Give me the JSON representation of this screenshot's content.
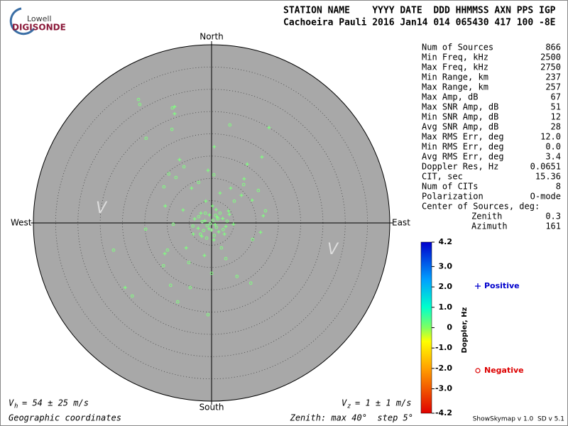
{
  "header": {
    "logo_top": "Lowell",
    "logo_bottom": "DIGISONDE",
    "line1": "STATION NAME    YYYY DATE  DDD HHMMSS AXN PPS IGP",
    "line2": "Cachoeira Pauli 2016 Jan14 014 065430 417 100 -8E"
  },
  "stats": [
    {
      "label": "Num of Sources",
      "value": "866"
    },
    {
      "label": "Min Freq, kHz",
      "value": "2500"
    },
    {
      "label": "Max Freq, kHz",
      "value": "2750"
    },
    {
      "label": "Min Range, km",
      "value": "237"
    },
    {
      "label": "Max Range, km",
      "value": "257"
    },
    {
      "label": "Max Amp, dB",
      "value": "67"
    },
    {
      "label": "Max SNR Amp, dB",
      "value": "51"
    },
    {
      "label": "Min SNR Amp, dB",
      "value": "12"
    },
    {
      "label": "Avg SNR Amp, dB",
      "value": "28"
    },
    {
      "label": "Max RMS Err, deg",
      "value": "12.0"
    },
    {
      "label": "Min RMS Err, deg",
      "value": "0.0"
    },
    {
      "label": "Avg RMS Err, deg",
      "value": "3.4"
    },
    {
      "label": "Doppler Res, Hz",
      "value": "0.0651"
    },
    {
      "label": "CIT, sec",
      "value": "15.36"
    },
    {
      "label": "Num of CITs",
      "value": "8"
    },
    {
      "label": "Polarization",
      "value": "O-mode"
    }
  ],
  "center": {
    "title": "Center of Sources, deg:",
    "rows": [
      {
        "label": "Zenith",
        "value": "0.3"
      },
      {
        "label": "Azimuth",
        "value": "161"
      }
    ]
  },
  "chart_data": {
    "type": "skymap",
    "directions": {
      "north": "North",
      "south": "South",
      "west": "West",
      "east": "East"
    },
    "side_marks": [
      "V",
      "V"
    ],
    "rlim": [
      0,
      40
    ],
    "rings": [
      5,
      10,
      15,
      20,
      25,
      30,
      35
    ],
    "series": [
      {
        "name": "Positive",
        "marker": "+",
        "color": "#80ff80",
        "legend_color": "#0000cc",
        "x": [
          -8.3,
          -8.3,
          12.9,
          0.6,
          -0.8,
          -7.2,
          11.3,
          8.0,
          7.3,
          -19.4,
          -10.5,
          -10.4,
          11.6,
          11.0,
          6.7,
          -4.5,
          4.3,
          9.1,
          1.9,
          -6.4,
          3.8,
          -4.1,
          0.5,
          4.9,
          -5.7,
          -1.6,
          0.2,
          -0.6,
          1.3,
          -2.4,
          2.9,
          -1.3,
          -1.5,
          0.8,
          2.5,
          -3.0,
          1.6,
          -0.5,
          3.2,
          -2.2,
          0.0,
          -3.8,
          4.0,
          1.0
        ],
        "y": [
          26.1,
          24.5,
          21.4,
          17.1,
          11.8,
          14.2,
          14.8,
          13.2,
          9.9,
          -14.5,
          -6.9,
          3.8,
          1.6,
          -2.1,
          6.2,
          7.8,
          7.8,
          5.1,
          6.7,
          2.9,
          2.7,
          -2.5,
          -3.8,
          -0.3,
          -5.6,
          -7.3,
          3.8,
          -1.3,
          1.3,
          2.2,
          -2.5,
          4.9,
          0.5,
          -0.4,
          1.0,
          -1.2,
          -2.0,
          1.8,
          -0.8,
          -3.0,
          -1.6,
          0.9,
          1.9,
          3.0
        ]
      },
      {
        "name": "Negative",
        "marker": "o",
        "color": "#80ff80",
        "legend_color": "#dd0000",
        "x": [
          -16.4,
          -16.1,
          -8.8,
          -8.9,
          -14.7,
          4.1,
          -9.6,
          -22.0,
          -17.8,
          -7.6,
          -9.2,
          -14.8,
          -10.8,
          -4.8,
          -0.8,
          5.7,
          8.8,
          12.1,
          10.5,
          7.2,
          -6.2,
          -2.9,
          -8.0,
          0.5,
          -10.7,
          -9.9,
          9.2,
          0.0,
          3.2,
          -5.1,
          -8.6,
          5.1,
          2.2,
          -1.4,
          1.1,
          -2.5,
          0.3,
          -1.0,
          1.9,
          -2.1,
          -0.3,
          1.4,
          -1.8,
          2.6,
          -2.9,
          0.6,
          3.5,
          -4.2,
          0.9,
          -1.1
        ],
        "y": [
          27.7,
          26.6,
          25.8,
          21.0,
          19.0,
          22.0,
          11.0,
          -6.1,
          -16.4,
          -17.7,
          -14.0,
          -1.4,
          -9.6,
          -14.5,
          -20.6,
          -12.0,
          -13.5,
          2.7,
          7.3,
          8.6,
          12.6,
          9.1,
          10.2,
          10.8,
          8.1,
          -6.1,
          -3.7,
          -11.3,
          -8.0,
          -8.9,
          -0.3,
          4.9,
          -5.6,
          2.2,
          -1.0,
          -2.5,
          0.6,
          -0.6,
          2.2,
          0.3,
          -0.2,
          0.9,
          -1.7,
          -1.5,
          1.4,
          -2.8,
          0.4,
          -0.7,
          1.7,
          -3.4
        ]
      }
    ],
    "colorbar": {
      "label": "Doppler, Hz",
      "lim": [
        -4.2,
        4.2
      ],
      "ticks": [
        4.2,
        {
          "value": 3,
          "label": "3.0"
        },
        {
          "value": 2,
          "label": "2.0"
        },
        {
          "value": 1,
          "label": "1.0"
        },
        0,
        {
          "value": -1,
          "label": "-1.0"
        },
        {
          "value": -2,
          "label": "-2.0"
        },
        {
          "value": -3,
          "label": "-3.0"
        },
        -4.2
      ]
    }
  },
  "footer": {
    "vh_symbol": "V",
    "vh_sub": "h",
    "vh_text": "= 54 ± 25 m/s",
    "vz_symbol": "V",
    "vz_sub": "z",
    "vz_text": "= 1 ± 1 m/s",
    "coords": "Geographic coordinates",
    "zenith": "Zenith: max 40°  step 5°",
    "version": "ShowSkymap v 1.0  SD v 5.1"
  }
}
